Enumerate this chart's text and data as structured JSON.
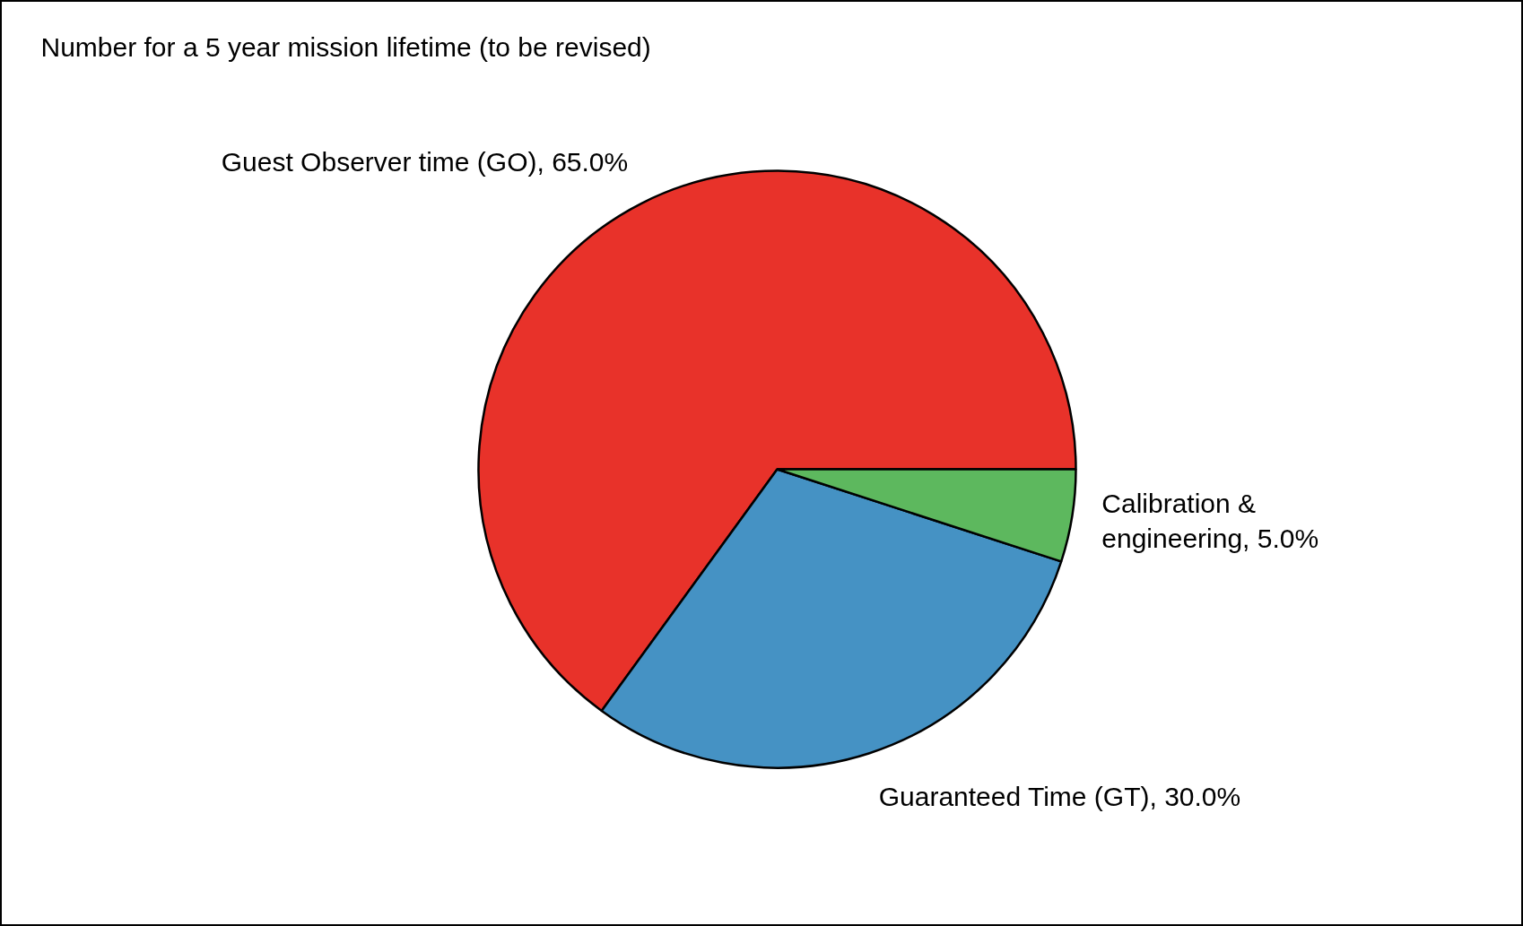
{
  "chart_data": {
    "type": "pie",
    "title": "Number for a 5 year mission lifetime (to be revised)",
    "categories": [
      "Guest Observer time (GO)",
      "Guaranteed Time (GT)",
      "Calibration & engineering"
    ],
    "values": [
      65,
      30,
      5
    ],
    "value_labels": [
      "65.0%",
      "30.0%",
      "5.0%"
    ],
    "colors": [
      "#e8322a",
      "#4592c4",
      "#5db85e"
    ]
  }
}
